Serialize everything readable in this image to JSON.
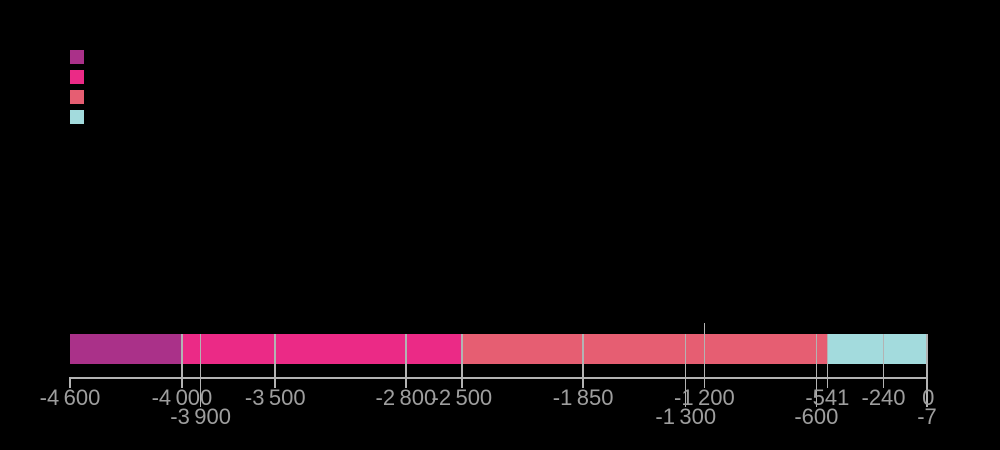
{
  "background_color": "#000000",
  "legend": {
    "swatches": [
      {
        "name": "legend-swatch-1",
        "color": "#aa3189"
      },
      {
        "name": "legend-swatch-2",
        "color": "#eb2a86"
      },
      {
        "name": "legend-swatch-3",
        "color": "#e65e72"
      },
      {
        "name": "legend-swatch-4",
        "color": "#a3dbdd"
      }
    ]
  },
  "chart_data": {
    "type": "bar",
    "subtype": "horizontal-timeline",
    "title": "",
    "xlabel": "",
    "ylabel": "",
    "axis": {
      "min": -4600,
      "max": 0,
      "line_color": "#b3b3b3",
      "label_color": "#9e9e9e"
    },
    "segments": [
      {
        "start": -4600,
        "end": -4000,
        "color": "#aa3189"
      },
      {
        "start": -4000,
        "end": -2500,
        "color": "#eb2a86"
      },
      {
        "start": -2500,
        "end": -541,
        "color": "#e65e72"
      },
      {
        "start": -541,
        "end": 0,
        "color": "#a3dbdd"
      }
    ],
    "ticks": [
      {
        "value": -4600,
        "label": "-4 600",
        "row": 1,
        "bar_cross": false,
        "axis_stub": true
      },
      {
        "value": -4000,
        "label": "-4 000",
        "row": 1,
        "bar_cross": true
      },
      {
        "value": -3900,
        "label": "-3 900",
        "row": 2,
        "bar_cross": true
      },
      {
        "value": -3500,
        "label": "-3 500",
        "row": 1,
        "bar_cross": true
      },
      {
        "value": -2800,
        "label": "-2 800",
        "row": 1,
        "bar_cross": true
      },
      {
        "value": -2500,
        "label": "-2 500",
        "row": 1,
        "bar_cross": true
      },
      {
        "value": -1850,
        "label": "-1 850",
        "row": 1,
        "bar_cross": true
      },
      {
        "value": -1300,
        "label": "-1 300",
        "row": 2,
        "bar_cross": true
      },
      {
        "value": -1200,
        "label": "-1 200",
        "row": 1,
        "bar_cross": true,
        "extend_above": true
      },
      {
        "value": -600,
        "label": "-600",
        "row": 2,
        "bar_cross": true
      },
      {
        "value": -541,
        "label": "-541",
        "row": 1,
        "bar_cross": true
      },
      {
        "value": -240,
        "label": "-240",
        "row": 1,
        "bar_cross": true
      },
      {
        "value": -7,
        "label": "-7",
        "row": 2,
        "bar_cross": true
      },
      {
        "value": 0,
        "label": "0",
        "row": 1,
        "bar_cross": false
      }
    ]
  }
}
